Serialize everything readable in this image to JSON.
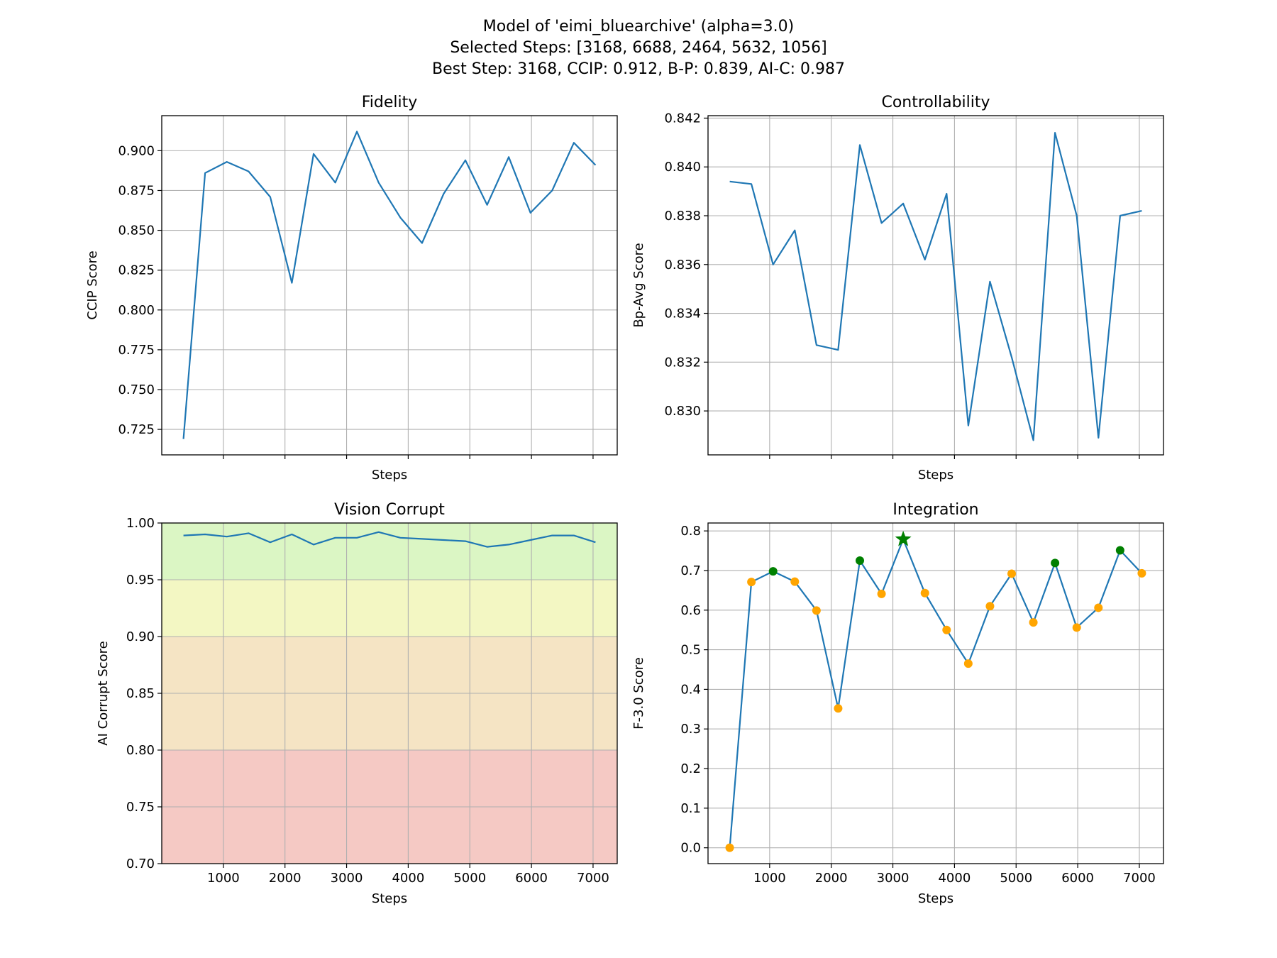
{
  "suptitle": [
    "Model of 'eimi_bluearchive' (alpha=3.0)",
    "Selected Steps: [3168, 6688, 2464, 5632, 1056]",
    "Best Step: 3168, CCIP: 0.912, B-P: 0.839, AI-C: 0.987"
  ],
  "colors": {
    "line": "#1f77b4",
    "point": "#ffa500",
    "selected": "#008000",
    "best": "#008000",
    "grid": "#b0b0b0"
  },
  "chart_data": [
    {
      "id": "fidelity",
      "type": "line",
      "title": "Fidelity",
      "xlabel": "Steps",
      "ylabel": "CCIP Score",
      "xlim": [
        0,
        7392
      ],
      "ylim": [
        0.709,
        0.922
      ],
      "xticks": [
        1000,
        2000,
        3000,
        4000,
        5000,
        6000,
        7000
      ],
      "show_xticklabels": false,
      "yticks": [
        0.725,
        0.75,
        0.775,
        0.8,
        0.825,
        0.85,
        0.875,
        0.9
      ],
      "ytick_labels": [
        "0.725",
        "0.750",
        "0.775",
        "0.800",
        "0.825",
        "0.850",
        "0.875",
        "0.900"
      ],
      "grid": true,
      "x": [
        352,
        704,
        1056,
        1408,
        1760,
        2112,
        2464,
        2816,
        3168,
        3520,
        3872,
        4224,
        4576,
        4928,
        5280,
        5632,
        5984,
        6336,
        6688,
        7040
      ],
      "series": [
        {
          "values": [
            0.719,
            0.886,
            0.893,
            0.887,
            0.871,
            0.817,
            0.898,
            0.88,
            0.912,
            0.88,
            0.858,
            0.842,
            0.873,
            0.894,
            0.866,
            0.896,
            0.861,
            0.875,
            0.905,
            0.891
          ]
        }
      ]
    },
    {
      "id": "controllability",
      "type": "line",
      "title": "Controllability",
      "xlabel": "Steps",
      "ylabel": "Bp-Avg Score",
      "xlim": [
        0,
        7392
      ],
      "ylim": [
        0.8282,
        0.8421
      ],
      "xticks": [
        1000,
        2000,
        3000,
        4000,
        5000,
        6000,
        7000
      ],
      "show_xticklabels": false,
      "yticks": [
        0.83,
        0.832,
        0.834,
        0.836,
        0.838,
        0.84,
        0.842
      ],
      "ytick_labels": [
        "0.830",
        "0.832",
        "0.834",
        "0.836",
        "0.838",
        "0.840",
        "0.842"
      ],
      "grid": true,
      "x": [
        352,
        704,
        1056,
        1408,
        1760,
        2112,
        2464,
        2816,
        3168,
        3520,
        3872,
        4224,
        4576,
        4928,
        5280,
        5632,
        5984,
        6336,
        6688,
        7040
      ],
      "series": [
        {
          "values": [
            0.8394,
            0.8393,
            0.836,
            0.8374,
            0.8327,
            0.8325,
            0.8409,
            0.8377,
            0.8385,
            0.8362,
            0.8389,
            0.8294,
            0.8353,
            0.8322,
            0.8288,
            0.8414,
            0.838,
            0.8289,
            0.838,
            0.8382
          ]
        }
      ]
    },
    {
      "id": "vision-corrupt",
      "type": "line",
      "title": "Vision Corrupt",
      "xlabel": "Steps",
      "ylabel": "AI Corrupt Score",
      "xlim": [
        0,
        7392
      ],
      "ylim": [
        0.7,
        1.0
      ],
      "xticks": [
        1000,
        2000,
        3000,
        4000,
        5000,
        6000,
        7000
      ],
      "xtick_labels": [
        "1000",
        "2000",
        "3000",
        "4000",
        "5000",
        "6000",
        "7000"
      ],
      "show_xticklabels": true,
      "yticks": [
        0.7,
        0.75,
        0.8,
        0.85,
        0.9,
        0.95,
        1.0
      ],
      "ytick_labels": [
        "0.70",
        "0.75",
        "0.80",
        "0.85",
        "0.90",
        "0.95",
        "1.00"
      ],
      "grid": true,
      "bands": [
        {
          "from": 0.95,
          "to": 1.0,
          "color": "#dbf6c4"
        },
        {
          "from": 0.9,
          "to": 0.95,
          "color": "#f3f7c3"
        },
        {
          "from": 0.8,
          "to": 0.9,
          "color": "#f5e4c4"
        },
        {
          "from": 0.7,
          "to": 0.8,
          "color": "#f5c9c4"
        }
      ],
      "x": [
        352,
        704,
        1056,
        1408,
        1760,
        2112,
        2464,
        2816,
        3168,
        3520,
        3872,
        4224,
        4576,
        4928,
        5280,
        5632,
        5984,
        6336,
        6688,
        7040
      ],
      "series": [
        {
          "values": [
            0.989,
            0.99,
            0.988,
            0.991,
            0.983,
            0.99,
            0.981,
            0.987,
            0.987,
            0.992,
            0.987,
            0.986,
            0.985,
            0.984,
            0.979,
            0.981,
            0.985,
            0.989,
            0.989,
            0.983
          ]
        }
      ]
    },
    {
      "id": "integration",
      "type": "line",
      "title": "Integration",
      "xlabel": "Steps",
      "ylabel": "F-3.0 Score",
      "xlim": [
        0,
        7392
      ],
      "ylim": [
        -0.04,
        0.82
      ],
      "xticks": [
        1000,
        2000,
        3000,
        4000,
        5000,
        6000,
        7000
      ],
      "xtick_labels": [
        "1000",
        "2000",
        "3000",
        "4000",
        "5000",
        "6000",
        "7000"
      ],
      "show_xticklabels": true,
      "yticks": [
        0.0,
        0.1,
        0.2,
        0.3,
        0.4,
        0.5,
        0.6,
        0.7,
        0.8
      ],
      "ytick_labels": [
        "0.0",
        "0.1",
        "0.2",
        "0.3",
        "0.4",
        "0.5",
        "0.6",
        "0.7",
        "0.8"
      ],
      "grid": true,
      "x": [
        352,
        704,
        1056,
        1408,
        1760,
        2112,
        2464,
        2816,
        3168,
        3520,
        3872,
        4224,
        4576,
        4928,
        5280,
        5632,
        5984,
        6336,
        6688,
        7040
      ],
      "series": [
        {
          "values": [
            0.0,
            0.671,
            0.698,
            0.672,
            0.599,
            0.352,
            0.725,
            0.641,
            0.779,
            0.643,
            0.55,
            0.465,
            0.61,
            0.692,
            0.569,
            0.719,
            0.556,
            0.606,
            0.751,
            0.693
          ]
        }
      ],
      "selected_steps": [
        3168,
        6688,
        2464,
        5632,
        1056
      ],
      "best_step": 3168
    }
  ]
}
